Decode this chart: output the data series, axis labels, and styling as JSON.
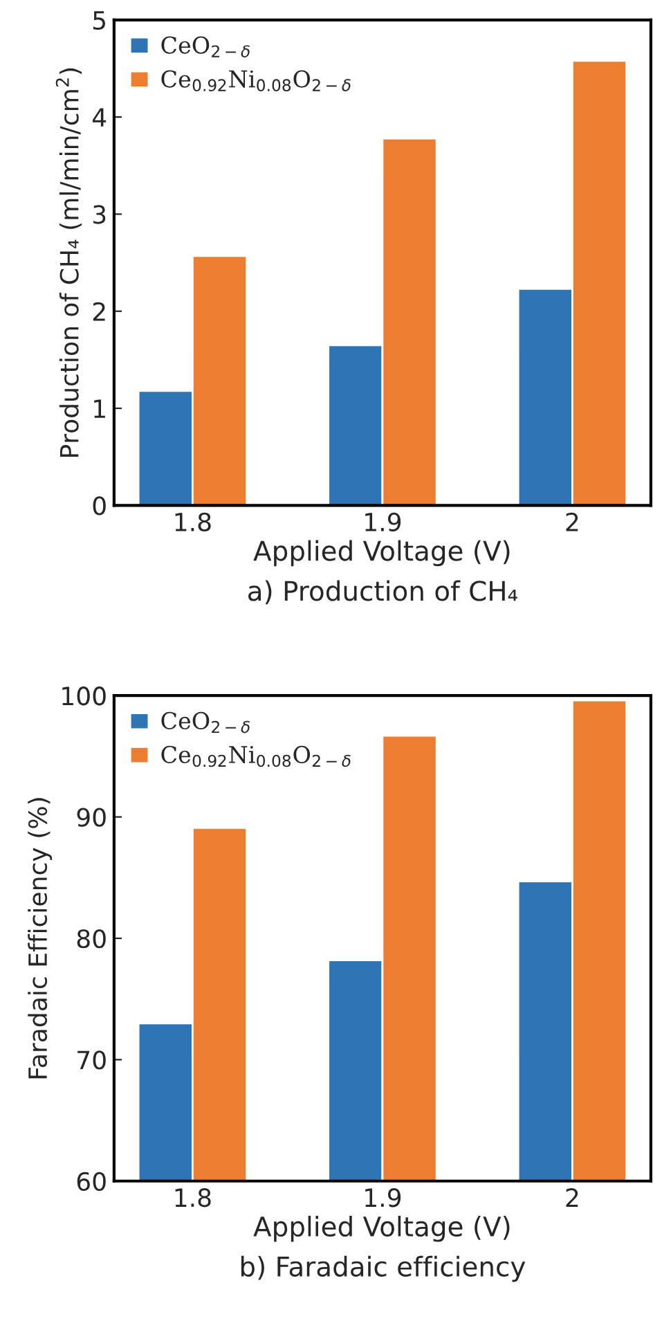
{
  "chart_data": [
    {
      "type": "bar",
      "title": "a) Production of CH₄",
      "xlabel": "Applied Voltage (V)",
      "ylabel": "Production of CH₄ (ml/min/cm$^{2}$)",
      "categories": [
        "1.8",
        "1.9",
        "2"
      ],
      "series": [
        {
          "name": "CeO$_{2−δ}$",
          "color": "#2e75b6",
          "values": [
            1.18,
            1.65,
            2.23
          ]
        },
        {
          "name": "Ce$_{0.92}$Ni$_{0.08}$O$_{2−δ}$",
          "color": "#ed7d31",
          "values": [
            2.57,
            3.78,
            4.58
          ]
        }
      ],
      "ylim": [
        0,
        5
      ],
      "yticks": [
        0,
        1,
        2,
        3,
        4,
        5
      ],
      "grid": false,
      "legend": "top left"
    },
    {
      "type": "bar",
      "title": "b) Faradaic efficiency",
      "xlabel": "Applied Voltage (V)",
      "ylabel": "Faradaic Efficiency (%)",
      "categories": [
        "1.8",
        "1.9",
        "2"
      ],
      "series": [
        {
          "name": "CeO$_{2−δ}$",
          "color": "#2e75b6",
          "values": [
            73.0,
            78.2,
            84.7
          ]
        },
        {
          "name": "Ce$_{0.92}$Ni$_{0.08}$O$_{2−δ}$",
          "color": "#ed7d31",
          "values": [
            89.1,
            96.7,
            99.6
          ]
        }
      ],
      "ylim": [
        60,
        100
      ],
      "yticks": [
        60,
        70,
        80,
        90,
        100
      ],
      "grid": false,
      "legend": "top left"
    }
  ]
}
